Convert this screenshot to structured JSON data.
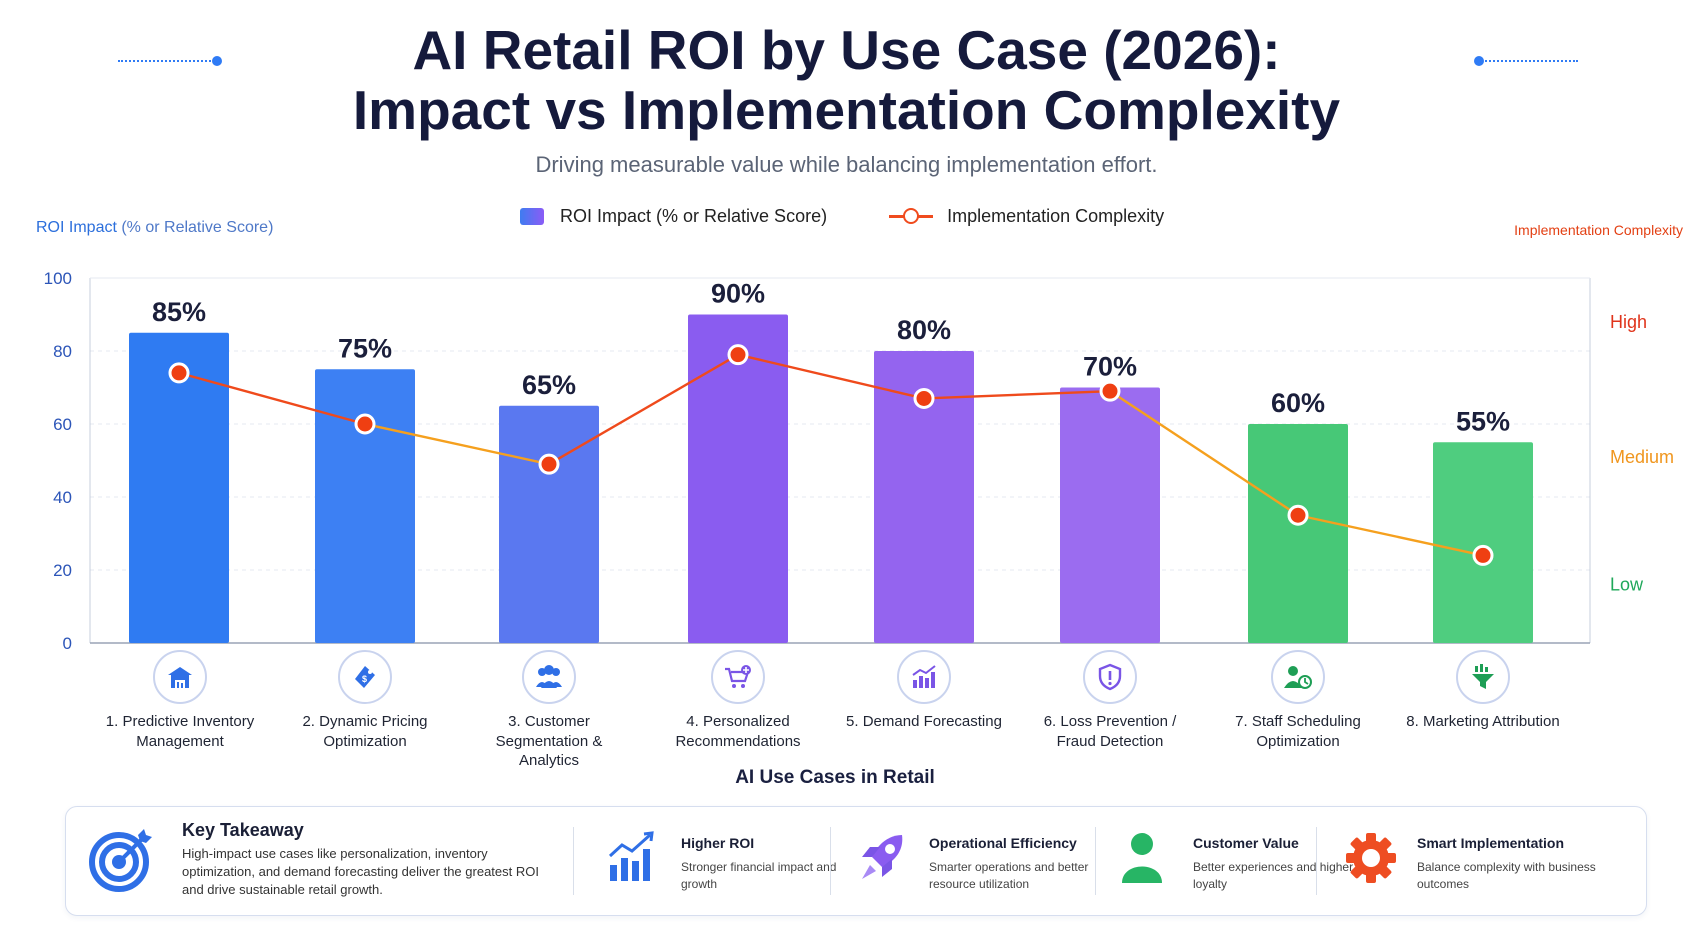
{
  "header": {
    "title_line1": "AI Retail ROI by Use Case (2026):",
    "title_line2": "Impact vs Implementation Complexity",
    "subtitle": "Driving measurable value while balancing implementation effort."
  },
  "legend": {
    "roi": "ROI Impact (% or Relative Score)",
    "complexity": "Implementation Complexity"
  },
  "axes": {
    "left_title_main": "ROI Impact",
    "left_title_rest": " (% or Relative Score)",
    "right_title": "Implementation Complexity",
    "x_title": "AI Use Cases in Retail"
  },
  "use_cases": [
    {
      "label": "1. Predictive Inventory Management",
      "icon": "warehouse-icon"
    },
    {
      "label": "2. Dynamic Pricing Optimization",
      "icon": "price-tag-icon"
    },
    {
      "label": "3. Customer Segmentation & Analytics",
      "icon": "people-group-icon"
    },
    {
      "label": "4. Personalized Recommendations",
      "icon": "shopping-cart-icon"
    },
    {
      "label": "5. Demand Forecasting",
      "icon": "trend-chart-icon"
    },
    {
      "label": "6. Loss Prevention / Fraud Detection",
      "icon": "shield-alert-icon"
    },
    {
      "label": "7. Staff Scheduling Optimization",
      "icon": "staff-clock-icon"
    },
    {
      "label": "8. Marketing Attribution",
      "icon": "funnel-icon"
    }
  ],
  "chart_data": {
    "type": "bar",
    "categories": [
      "1. Predictive Inventory Management",
      "2. Dynamic Pricing Optimization",
      "3. Customer Segmentation & Analytics",
      "4. Personalized Recommendations",
      "5. Demand Forecasting",
      "6. Loss Prevention / Fraud Detection",
      "7. Staff Scheduling Optimization",
      "8. Marketing Attribution"
    ],
    "series": [
      {
        "name": "ROI Impact (% or Relative Score)",
        "type": "bar",
        "axis": "left",
        "values": [
          85,
          75,
          65,
          90,
          80,
          70,
          60,
          55
        ],
        "data_labels": [
          "85%",
          "75%",
          "65%",
          "90%",
          "80%",
          "70%",
          "60%",
          "55%"
        ],
        "colors": [
          "#2f7bf2",
          "#3d80f3",
          "#5a78f0",
          "#8a5cf0",
          "#9464ef",
          "#9b6cf0",
          "#47c877",
          "#4fcd7f"
        ]
      },
      {
        "name": "Implementation Complexity",
        "type": "line",
        "axis": "right",
        "values": [
          74,
          60,
          49,
          79,
          67,
          69,
          35,
          24
        ]
      }
    ],
    "ylim": [
      0,
      100
    ],
    "yticks": [
      0,
      20,
      40,
      60,
      80,
      100
    ],
    "right_axis_labels": [
      {
        "text": "High",
        "value": 88,
        "color": "#e0341b"
      },
      {
        "text": "Medium",
        "value": 51,
        "color": "#f0961e"
      },
      {
        "text": "Low",
        "value": 16,
        "color": "#1fa85a"
      }
    ],
    "xlabel": "AI Use Cases in Retail",
    "ylabel": "ROI Impact (% or Relative Score)",
    "y2label": "Implementation Complexity",
    "grid": true,
    "legend_position": "top-center"
  },
  "takeaway": {
    "title": "Key Takeaway",
    "body": "High-impact use cases like personalization, inventory optimization, and demand forecasting deliver the greatest ROI and drive sustainable retail growth.",
    "icon": "target-icon"
  },
  "features": [
    {
      "title": "Higher ROI",
      "desc": "Stronger financial impact and growth",
      "icon": "growth-chart-icon"
    },
    {
      "title": "Operational Efficiency",
      "desc": "Smarter operations and better resource utilization",
      "icon": "rocket-icon"
    },
    {
      "title": "Customer Value",
      "desc": "Better experiences and higher loyalty",
      "icon": "customer-icon"
    },
    {
      "title": "Smart Implementation",
      "desc": "Balance complexity with business outcomes",
      "icon": "gear-icon"
    }
  ]
}
